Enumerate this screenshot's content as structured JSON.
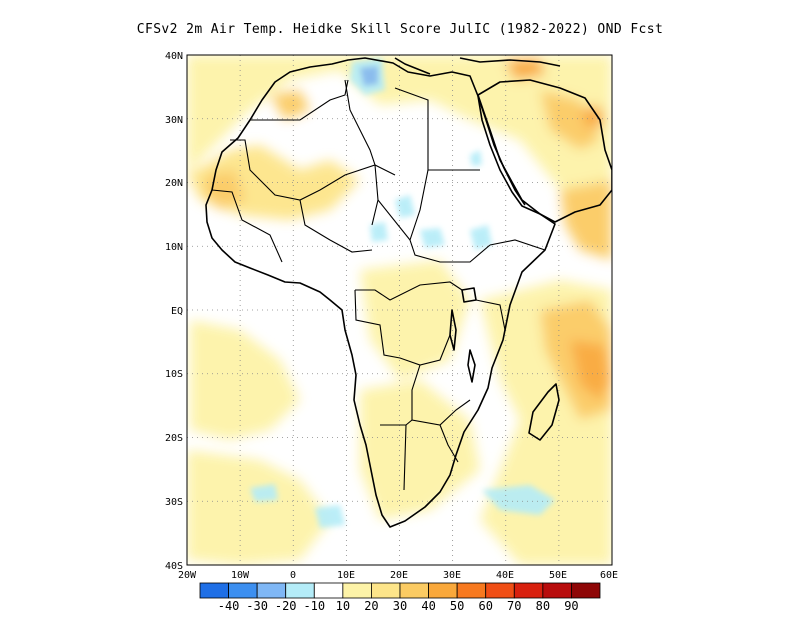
{
  "title": "CFSv2  2m Air Temp. Heidke Skill Score JulIC (1982-2022) OND Fcst",
  "map": {
    "lat_labels": [
      "40N",
      "30N",
      "20N",
      "10N",
      "EQ",
      "10S",
      "20S",
      "30S",
      "40S"
    ],
    "lon_labels": [
      "20W",
      "10W",
      "0",
      "10E",
      "20E",
      "30E",
      "40E",
      "50E",
      "60E"
    ],
    "grid": "dotted"
  },
  "colorbar": {
    "labels": [
      "-40",
      "-30",
      "-20",
      "-10",
      "10",
      "20",
      "30",
      "40",
      "50",
      "60",
      "70",
      "80",
      "90"
    ],
    "colors": [
      "#1f6fe6",
      "#3c8ff0",
      "#7fb7f5",
      "#b4ecf8",
      "#ffffff",
      "#fdf3a8",
      "#fde58a",
      "#fbcb63",
      "#f9a83b",
      "#f7791f",
      "#f04e15",
      "#d8200e",
      "#b80c0c",
      "#8e0606"
    ]
  },
  "colors": {
    "land_outline": "#000000",
    "background": "#ffffff"
  }
}
